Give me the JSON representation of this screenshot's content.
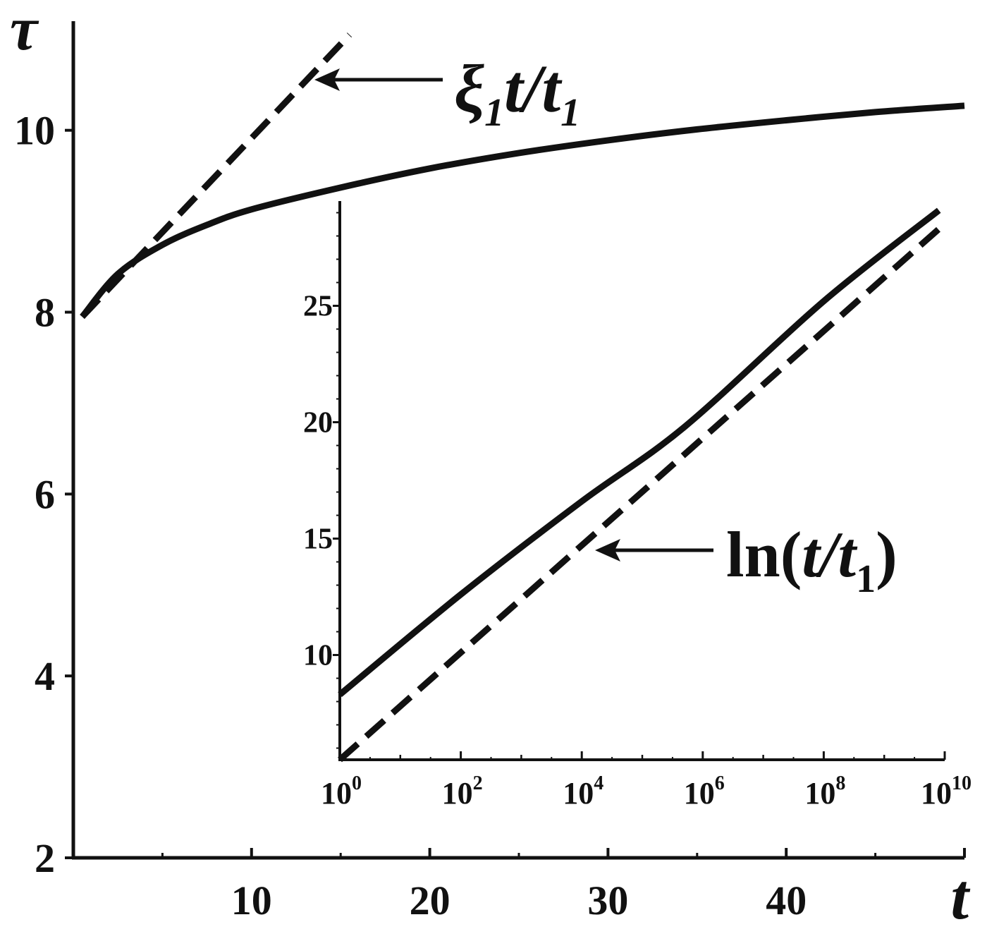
{
  "chart_data": [
    {
      "type": "line",
      "title": "",
      "xlabel": "t",
      "ylabel": "τ",
      "xlim": [
        0,
        50
      ],
      "ylim": [
        2,
        11.2
      ],
      "x_ticks": [
        10,
        20,
        30,
        40
      ],
      "y_ticks": [
        2,
        4,
        6,
        8,
        10
      ],
      "x_tick_labels": [
        "10",
        "20",
        "30",
        "40"
      ],
      "y_tick_labels": [
        "2",
        "4",
        "6",
        "8",
        "10"
      ],
      "grid": false,
      "series": [
        {
          "style": "solid",
          "x": [
            0.5,
            2.5,
            5,
            7.5,
            10,
            15,
            20,
            25,
            30,
            35,
            40,
            45,
            50
          ],
          "y": [
            7.95,
            8.42,
            8.74,
            8.96,
            9.13,
            9.37,
            9.58,
            9.75,
            9.89,
            10.01,
            10.11,
            10.2,
            10.27
          ]
        },
        {
          "style": "dashed",
          "x": [
            0.5,
            15.5
          ],
          "y": [
            7.95,
            11.05
          ]
        }
      ],
      "annotations": [
        {
          "text_main": "ξ",
          "sub1": "1",
          "text_mid": "t/t",
          "sub2": "1",
          "points_to": "dashed"
        }
      ]
    },
    {
      "type": "line",
      "inset": true,
      "xscale": "log",
      "xlim": [
        1,
        10000000000
      ],
      "ylim": [
        5.5,
        29.5
      ],
      "x_ticks": [
        1,
        100,
        10000,
        1000000,
        100000000,
        10000000000
      ],
      "x_tick_base": "10",
      "x_tick_exponents": [
        "0",
        "2",
        "4",
        "6",
        "8",
        "10"
      ],
      "y_ticks": [
        10,
        15,
        20,
        25
      ],
      "y_tick_labels": [
        "10",
        "15",
        "20",
        "25"
      ],
      "grid": false,
      "series": [
        {
          "style": "solid",
          "x": [
            1,
            100,
            10000,
            500000,
            100000000,
            8000000000
          ],
          "y": [
            8.3,
            12.6,
            16.6,
            19.8,
            25.2,
            29.1
          ]
        },
        {
          "style": "dashed",
          "x": [
            1,
            8000000000
          ],
          "y": [
            5.5,
            28.3
          ]
        }
      ],
      "annotations": [
        {
          "text_main": "ln(",
          "text_italic": "t/t",
          "sub": "1",
          "text_end": ")",
          "points_to": "dashed"
        }
      ]
    }
  ]
}
